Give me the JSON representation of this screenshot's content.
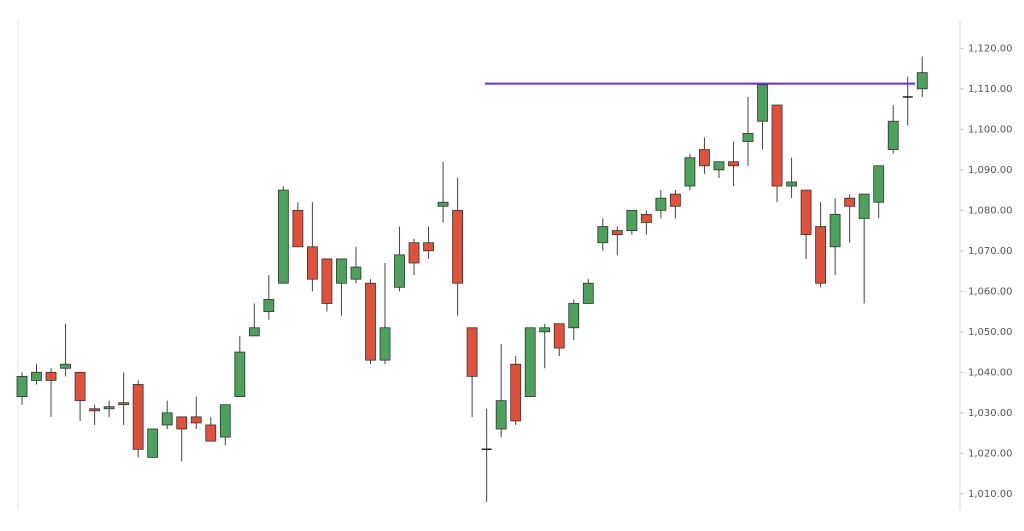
{
  "chart_data": {
    "type": "candlestick",
    "open": [
      1034,
      1038,
      1040,
      1041,
      1040,
      1031,
      1031,
      1032.5,
      1037,
      1019,
      1027,
      1029,
      1029,
      1027,
      1024,
      1034,
      1049,
      1055,
      1062,
      1080,
      1071,
      1068,
      1062,
      1063,
      1062,
      1043,
      1061,
      1072,
      1072,
      1081,
      1080,
      1051,
      1021,
      1026,
      1042,
      1034,
      1050,
      1052,
      1051,
      1057,
      1072,
      1075,
      1075,
      1079,
      1080,
      1084,
      1086,
      1095,
      1090,
      1092,
      1097,
      1102,
      1106,
      1086,
      1085,
      1076,
      1071,
      1083,
      1078,
      1082,
      1095,
      1108,
      1110
    ],
    "high": [
      1040,
      1042,
      1041,
      1052,
      1040,
      1032,
      1033,
      1040,
      1038,
      1026,
      1033,
      1029,
      1034,
      1029,
      1032,
      1049,
      1057,
      1064,
      1086,
      1082,
      1082,
      1068,
      1068,
      1071,
      1063,
      1067,
      1076,
      1073,
      1076,
      1092,
      1088,
      1051,
      1031,
      1047,
      1044,
      1051,
      1052,
      1052,
      1058,
      1063,
      1078,
      1076,
      1080,
      1080,
      1085,
      1085,
      1094,
      1098,
      1092,
      1097,
      1108,
      1111,
      1106,
      1093,
      1085,
      1082,
      1083,
      1084,
      1084,
      1091,
      1106,
      1113,
      1118
    ],
    "low": [
      1032,
      1037,
      1029,
      1039,
      1028,
      1027,
      1029,
      1027,
      1019,
      1019,
      1026,
      1018,
      1026,
      1023,
      1022,
      1034,
      1049,
      1053,
      1062,
      1071,
      1060,
      1055,
      1054,
      1062,
      1042,
      1042,
      1060,
      1064,
      1068,
      1077,
      1054,
      1029,
      1008,
      1024,
      1027,
      1034,
      1041,
      1044,
      1048,
      1057,
      1070,
      1069,
      1074,
      1074,
      1078,
      1078,
      1085,
      1089,
      1088,
      1086,
      1091,
      1095,
      1082,
      1083,
      1068,
      1061,
      1064,
      1072,
      1057,
      1078,
      1094,
      1101,
      1108
    ],
    "close": [
      1039,
      1040,
      1038,
      1042,
      1033,
      1030.5,
      1031.5,
      1032,
      1021,
      1026,
      1030,
      1026,
      1027.5,
      1023,
      1032,
      1045,
      1051,
      1058,
      1085,
      1071,
      1063,
      1057,
      1068,
      1066,
      1043,
      1051,
      1069,
      1067,
      1070,
      1082,
      1062,
      1039,
      1021,
      1033,
      1028,
      1051,
      1051,
      1046,
      1057,
      1062,
      1076,
      1074,
      1080,
      1077,
      1083,
      1081,
      1093,
      1091,
      1092,
      1091,
      1099,
      1111,
      1086,
      1087,
      1074,
      1062,
      1079,
      1081,
      1084,
      1091,
      1102,
      1108,
      1114
    ],
    "up_color": "#4ca25a",
    "down_color": "#e0503a",
    "hline": {
      "value": 1111.3,
      "color": "#6a2ed6"
    },
    "ylim": [
      1006,
      1127
    ],
    "yticks": [
      {
        "value": 1010,
        "label": "1,010.00"
      },
      {
        "value": 1020,
        "label": "1,020.00"
      },
      {
        "value": 1030,
        "label": "1,030.00"
      },
      {
        "value": 1040,
        "label": "1,040.00"
      },
      {
        "value": 1050,
        "label": "1,050.00"
      },
      {
        "value": 1060,
        "label": "1,060.00"
      },
      {
        "value": 1070,
        "label": "1,070.00"
      },
      {
        "value": 1080,
        "label": "1,080.00"
      },
      {
        "value": 1090,
        "label": "1,090.00"
      },
      {
        "value": 1100,
        "label": "1,100.00"
      },
      {
        "value": 1110,
        "label": "1,110.00"
      },
      {
        "value": 1120,
        "label": "1,120.00"
      }
    ]
  }
}
